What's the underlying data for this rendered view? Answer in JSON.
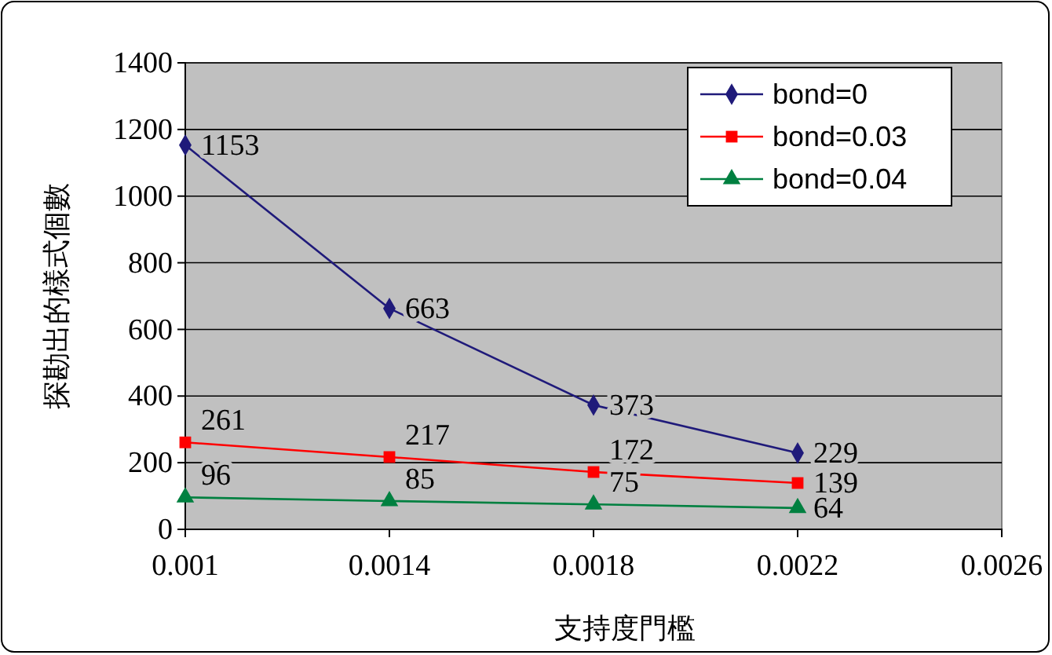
{
  "chart_data": {
    "type": "line",
    "xlabel": "支持度門檻",
    "ylabel": "探勘出的樣式個數",
    "x": [
      0.001,
      0.0014,
      0.0018,
      0.0022
    ],
    "series": [
      {
        "name": "bond=0",
        "color": "#1f1a7a",
        "marker": "diamond",
        "values": [
          1153,
          663,
          373,
          229
        ]
      },
      {
        "name": "bond=0.03",
        "color": "#ff0000",
        "marker": "square",
        "values": [
          261,
          217,
          172,
          139
        ]
      },
      {
        "name": "bond=0.04",
        "color": "#008040",
        "marker": "triangle",
        "values": [
          96,
          85,
          75,
          64
        ]
      }
    ],
    "xlim": [
      0.001,
      0.0026
    ],
    "xticks": [
      0.001,
      0.0014,
      0.0018,
      0.0022,
      0.0026
    ],
    "ylim": [
      0,
      1400
    ],
    "yticks": [
      0,
      200,
      400,
      600,
      800,
      1000,
      1200,
      1400
    ],
    "grid": "y",
    "legend": "top right",
    "data_labels": true
  }
}
